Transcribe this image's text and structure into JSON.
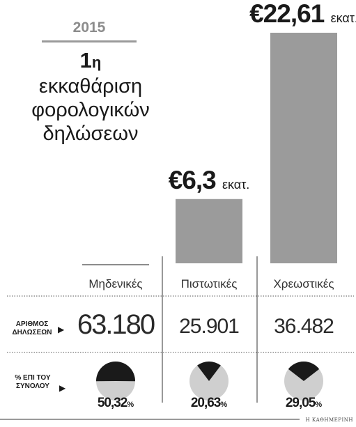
{
  "header": {
    "year": "2015",
    "title_lead": "1",
    "title_lead_suffix": "η",
    "title_rest": "εκκαθάριση φορολογικών δηλώσεων"
  },
  "row_labels": {
    "count_line1": "ΑΡΙΘΜΟΣ",
    "count_line2": "ΔΗΛΩΣΕΩΝ",
    "pct_line1": "% ΕΠΙ ΤΟΥ",
    "pct_line2": "ΣΥΝΟΛΟΥ",
    "arrow": "▶"
  },
  "credit": "Η ΚΑΘΗΜΕΡΙΝΗ",
  "colors": {
    "bar": "#9b9b9b",
    "pie_fill": "#1a1a1a",
    "pie_bg": "#cfcfcf",
    "rule": "#9a9a9a"
  },
  "chart_data": {
    "type": "bar",
    "categories": [
      "Μηδενικές",
      "Πιστωτικές",
      "Χρεωστικές"
    ],
    "values": [
      0,
      6.3,
      22.61
    ],
    "value_labels": [
      "",
      "€6,3",
      "€22,61"
    ],
    "value_unit": "εκατ.",
    "counts": [
      "63.180",
      "25.901",
      "36.482"
    ],
    "percent_values": [
      50.32,
      20.63,
      29.05
    ],
    "percent_labels": [
      "50,32",
      "20,63",
      "29,05"
    ],
    "percent_unit": "%",
    "title": "1η εκκαθάριση φορολογικών δηλώσεων",
    "xlabel": "",
    "ylabel": ""
  }
}
